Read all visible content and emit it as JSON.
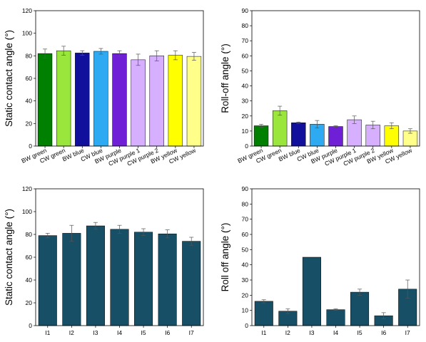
{
  "chart_data": [
    {
      "type": "bar",
      "ylabel": "Static contact angle (°)",
      "categories": [
        "BW green",
        "CW green",
        "BW blue",
        "CW blue",
        "BW purple",
        "CW purple 1",
        "CW purple 2",
        "BW yellow",
        "CW yellow"
      ],
      "values": [
        82,
        84.5,
        82.5,
        84,
        82,
        76.5,
        80,
        80.5,
        79.5
      ],
      "errors": [
        4,
        4,
        2,
        2.5,
        2.5,
        5,
        4.5,
        4,
        3.5
      ],
      "colors": [
        "#008000",
        "#9ae63c",
        "#10109c",
        "#2eaaf2",
        "#6f1fd6",
        "#d6b0ff",
        "#d6b0ff",
        "#ffff00",
        "#ffff8a"
      ],
      "ylim": [
        0,
        120
      ],
      "yticks": [
        "0",
        "20",
        "40",
        "60",
        "80",
        "100",
        "120"
      ],
      "rotate_labels": true
    },
    {
      "type": "bar",
      "ylabel": "Roll-off angle (°)",
      "categories": [
        "BW green",
        "CW green",
        "BW blue",
        "CW blue",
        "BW purple",
        "CW purple 1",
        "CW purple 2",
        "BW yellow",
        "CW yellow"
      ],
      "values": [
        13.5,
        23.5,
        15.5,
        14.5,
        13,
        17.5,
        14,
        13.5,
        10
      ],
      "errors": [
        1,
        3,
        0.5,
        2.5,
        0.5,
        2.5,
        2.5,
        2,
        1.5
      ],
      "colors": [
        "#008000",
        "#9ae63c",
        "#10109c",
        "#2eaaf2",
        "#6f1fd6",
        "#d6b0ff",
        "#d6b0ff",
        "#ffff00",
        "#ffff8a"
      ],
      "ylim": [
        0,
        90
      ],
      "yticks": [
        "0",
        "10",
        "20",
        "30",
        "40",
        "50",
        "60",
        "70",
        "80",
        "90"
      ],
      "rotate_labels": true
    },
    {
      "type": "bar",
      "ylabel": "Static contact angle (°)",
      "categories": [
        "I1",
        "I2",
        "I3",
        "I4",
        "I5",
        "I6",
        "I7"
      ],
      "values": [
        79,
        81,
        87.5,
        84.5,
        82,
        80.5,
        74
      ],
      "errors": [
        2,
        7,
        3,
        3.5,
        3,
        3.5,
        3.5
      ],
      "colors": [
        "#174f66",
        "#174f66",
        "#174f66",
        "#174f66",
        "#174f66",
        "#174f66",
        "#174f66"
      ],
      "ylim": [
        0,
        120
      ],
      "yticks": [
        "0",
        "20",
        "40",
        "60",
        "80",
        "100",
        "120"
      ],
      "rotate_labels": false
    },
    {
      "type": "bar",
      "ylabel": "Roll off angle (°)",
      "categories": [
        "I1",
        "I2",
        "I3",
        "I4",
        "I5",
        "I6",
        "I7"
      ],
      "values": [
        16,
        9.5,
        45,
        10.5,
        22,
        6.5,
        24
      ],
      "errors": [
        1,
        1.5,
        0,
        0.5,
        2,
        2,
        6
      ],
      "colors": [
        "#174f66",
        "#174f66",
        "#174f66",
        "#174f66",
        "#174f66",
        "#174f66",
        "#174f66"
      ],
      "ylim": [
        0,
        90
      ],
      "yticks": [
        "0",
        "10",
        "20",
        "30",
        "40",
        "50",
        "60",
        "70",
        "80",
        "90"
      ],
      "rotate_labels": false
    }
  ]
}
